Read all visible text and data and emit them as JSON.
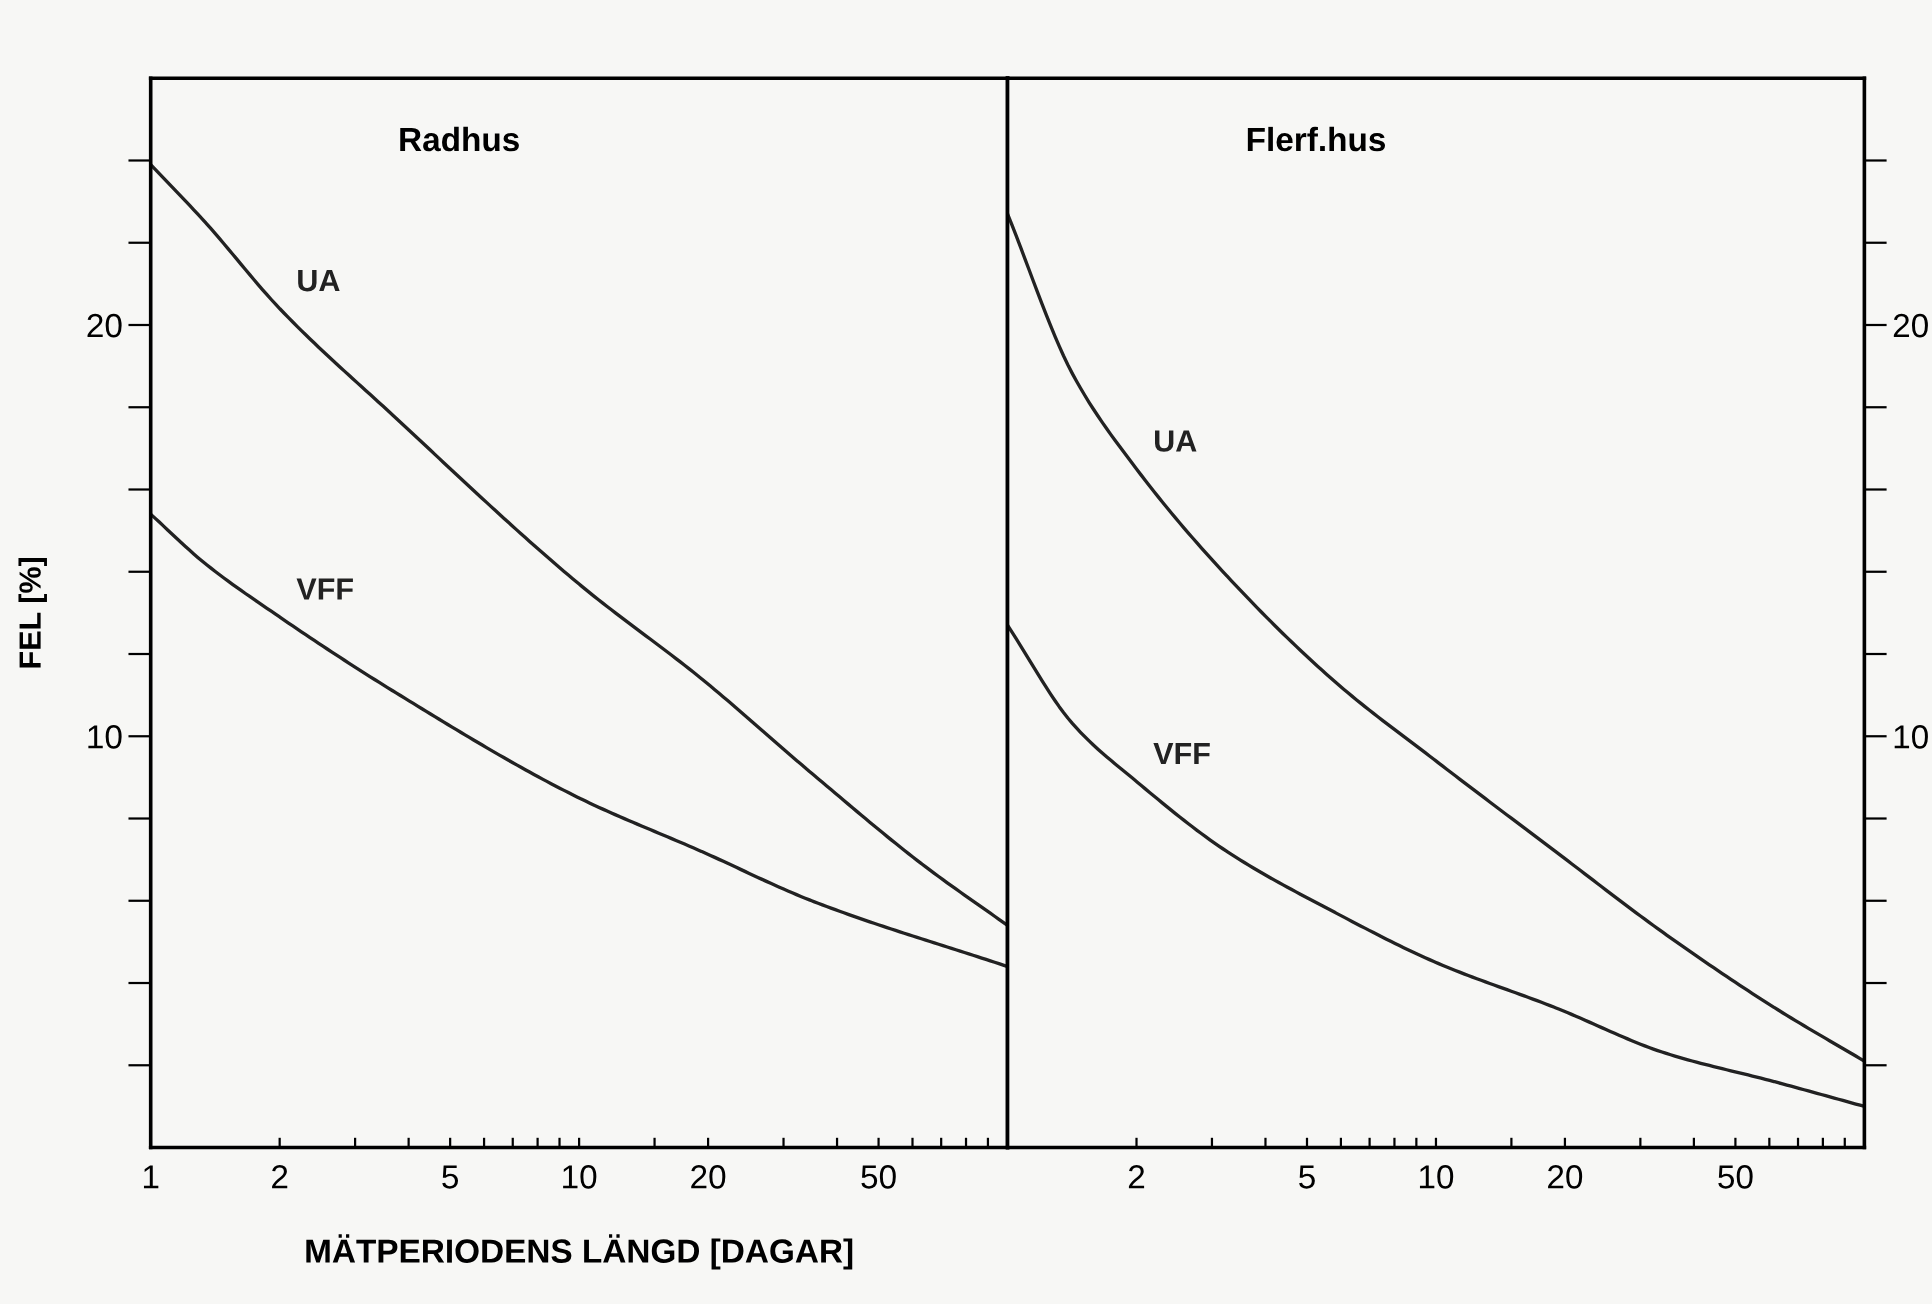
{
  "chart_data": [
    {
      "type": "line",
      "title": "Radhus",
      "xlabel": "MÄTPERIODENS LÄNGD [DAGAR]",
      "ylabel": "FEL [%]",
      "log": "x",
      "grid": false,
      "legend": false,
      "xlim": [
        1,
        100
      ],
      "xticks": [
        1,
        2,
        {
          "value": 3,
          "label": null
        },
        {
          "value": 4,
          "label": null
        },
        5,
        {
          "value": 6,
          "label": null
        },
        {
          "value": 7,
          "label": null
        },
        {
          "value": 8,
          "label": null
        },
        {
          "value": 9,
          "label": null
        },
        10,
        {
          "value": 15,
          "label": null
        },
        20,
        {
          "value": 30,
          "label": null
        },
        {
          "value": 40,
          "label": null
        },
        50,
        {
          "value": 60,
          "label": null
        },
        {
          "value": 70,
          "label": null
        },
        {
          "value": 80,
          "label": null
        },
        {
          "value": 90,
          "label": null
        }
      ],
      "ylim": [
        0,
        26
      ],
      "yticks": [
        {
          "value": 2,
          "label": null
        },
        {
          "value": 4,
          "label": null
        },
        {
          "value": 6,
          "label": null
        },
        {
          "value": 8,
          "label": null
        },
        10,
        {
          "value": 12,
          "label": null
        },
        {
          "value": 14,
          "label": null
        },
        {
          "value": 16,
          "label": null
        },
        {
          "value": 18,
          "label": null
        },
        20,
        {
          "value": 22,
          "label": null
        },
        {
          "value": 24,
          "label": null
        }
      ],
      "series": [
        {
          "name": "UA",
          "color": "#222222",
          "x": [
            1,
            1.34,
            2,
            3.68,
            10,
            19.3,
            34.9,
            63,
            100
          ],
          "values": [
            23.9,
            22.5,
            20.4,
            17.8,
            13.7,
            11.4,
            9.1,
            6.9,
            5.4
          ]
        },
        {
          "name": "VFF",
          "color": "#222222",
          "x": [
            1,
            1.34,
            2,
            3.68,
            10,
            19.3,
            34.9,
            100
          ],
          "values": [
            15.4,
            14.2,
            12.9,
            11.1,
            8.5,
            7.2,
            6.0,
            4.4
          ]
        }
      ]
    },
    {
      "type": "line",
      "title": "Flerf.hus",
      "log": "x",
      "grid": false,
      "legend": false,
      "xlim": [
        1,
        100
      ],
      "xticks": [
        2,
        {
          "value": 3,
          "label": null
        },
        {
          "value": 4,
          "label": null
        },
        5,
        {
          "value": 6,
          "label": null
        },
        {
          "value": 7,
          "label": null
        },
        {
          "value": 8,
          "label": null
        },
        {
          "value": 9,
          "label": null
        },
        10,
        {
          "value": 15,
          "label": null
        },
        20,
        {
          "value": 30,
          "label": null
        },
        {
          "value": 40,
          "label": null
        },
        50,
        {
          "value": 60,
          "label": null
        },
        {
          "value": 70,
          "label": null
        },
        {
          "value": 80,
          "label": null
        },
        {
          "value": 90,
          "label": null
        }
      ],
      "ylim": [
        0,
        26
      ],
      "yticks": [
        {
          "value": 2,
          "label": null
        },
        {
          "value": 4,
          "label": null
        },
        {
          "value": 6,
          "label": null
        },
        {
          "value": 8,
          "label": null
        },
        10,
        {
          "value": 12,
          "label": null
        },
        {
          "value": 14,
          "label": null
        },
        {
          "value": 16,
          "label": null
        },
        {
          "value": 18,
          "label": null
        },
        20,
        {
          "value": 22,
          "label": null
        },
        {
          "value": 24,
          "label": null
        }
      ],
      "series": [
        {
          "name": "UA",
          "color": "#222222",
          "x": [
            1,
            1.42,
            2,
            3.25,
            5.85,
            10,
            19,
            34.2,
            61.7,
            100
          ],
          "values": [
            22.7,
            18.8,
            16.5,
            13.9,
            11.3,
            9.4,
            7.2,
            5.2,
            3.4,
            2.1
          ]
        },
        {
          "name": "VFF",
          "color": "#222222",
          "x": [
            1,
            1.42,
            2,
            3.25,
            5.85,
            10,
            19,
            34.2,
            61.7,
            100
          ],
          "values": [
            12.7,
            10.3,
            8.9,
            7.2,
            5.7,
            4.5,
            3.4,
            2.3,
            1.6,
            1.0
          ]
        }
      ]
    }
  ]
}
